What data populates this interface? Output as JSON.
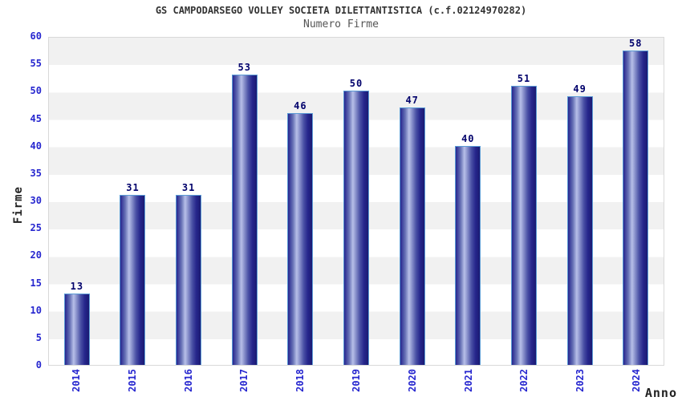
{
  "header": {
    "title": "GS CAMPODARSEGO VOLLEY SOCIETA DILETTANTISTICA (c.f.02124970282)",
    "subtitle": "Numero Firme"
  },
  "chart_data": {
    "type": "bar",
    "title": "GS CAMPODARSEGO VOLLEY SOCIETA DILETTANTISTICA (c.f.02124970282)",
    "subtitle": "Numero Firme",
    "categories": [
      "2014",
      "2015",
      "2016",
      "2017",
      "2018",
      "2019",
      "2020",
      "2021",
      "2022",
      "2023",
      "2024"
    ],
    "values": [
      13,
      31,
      31,
      53,
      46,
      50,
      47,
      40,
      51,
      49,
      58
    ],
    "xlabel": "Anno",
    "ylabel": "Firme",
    "ylim": [
      0,
      60
    ],
    "ytick_step": 5,
    "grid": "horizontal-bands",
    "legend_position": "none",
    "bar_orientation": "vertical"
  },
  "colors": {
    "tick_label": "#2626cf",
    "value_label": "#00006b",
    "bar_border": "#5b9bd5",
    "bar_dark": "#1a1a72",
    "bar_mid": "#26268f",
    "bar_light": "#b7bfe8",
    "band_gray": "#f1f1f1",
    "plot_border": "#d9d9d9",
    "title": "#333333",
    "subtitle": "#555555",
    "axis_title": "#222222",
    "background": "#ffffff"
  }
}
